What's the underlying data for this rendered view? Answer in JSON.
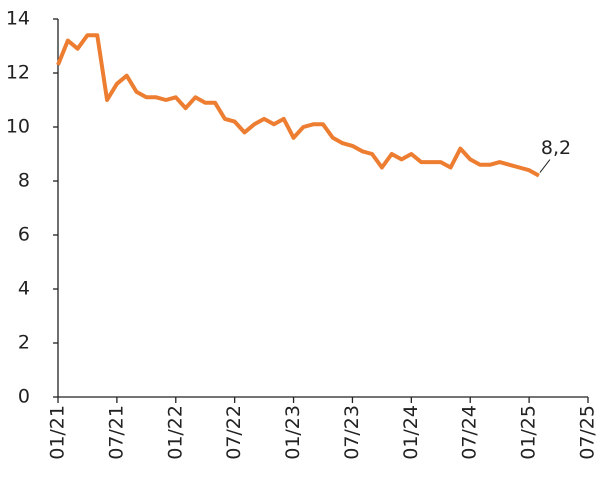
{
  "chart_data": {
    "type": "line",
    "categories": [
      "01/21",
      null,
      null,
      null,
      null,
      null,
      "07/21",
      null,
      null,
      null,
      null,
      null,
      "01/22",
      null,
      null,
      null,
      null,
      null,
      "07/22",
      null,
      null,
      null,
      null,
      null,
      "01/23",
      null,
      null,
      null,
      null,
      null,
      "07/23",
      null,
      null,
      null,
      null,
      null,
      "01/24",
      null,
      null,
      null,
      null,
      null,
      "07/24",
      null,
      null,
      null,
      null,
      null,
      "01/25",
      null,
      null,
      null,
      null,
      null,
      "07/25"
    ],
    "series": [
      {
        "color": "#ed7d31",
        "values": [
          12.3,
          13.2,
          12.9,
          13.4,
          13.4,
          11.0,
          11.6,
          11.9,
          11.3,
          11.1,
          11.1,
          11.0,
          11.1,
          10.7,
          11.1,
          10.9,
          10.9,
          10.3,
          10.2,
          9.8,
          10.1,
          10.3,
          10.1,
          10.3,
          9.6,
          10.0,
          10.1,
          10.1,
          9.6,
          9.4,
          9.3,
          9.1,
          9.0,
          8.5,
          9.0,
          8.8,
          9.0,
          8.7,
          8.7,
          8.7,
          8.5,
          9.2,
          8.8,
          8.6,
          8.6,
          8.7,
          8.6,
          8.5,
          8.4,
          8.2,
          null,
          null,
          null,
          null,
          null
        ],
        "value_labels": [
          null,
          null,
          null,
          null,
          null,
          null,
          null,
          null,
          null,
          null,
          null,
          null,
          null,
          null,
          null,
          null,
          null,
          null,
          null,
          null,
          null,
          null,
          null,
          null,
          null,
          null,
          null,
          null,
          null,
          null,
          null,
          null,
          null,
          null,
          null,
          null,
          null,
          null,
          null,
          null,
          null,
          null,
          null,
          null,
          null,
          null,
          null,
          null,
          null,
          "8,2",
          null,
          null,
          null,
          null,
          null
        ]
      }
    ],
    "ylim": [
      0,
      14
    ],
    "yticks": [
      0,
      2,
      4,
      6,
      8,
      10,
      12,
      14
    ],
    "grid": false
  }
}
